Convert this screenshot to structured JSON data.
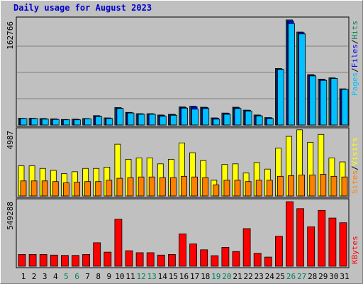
{
  "title": "Daily usage for August 2023",
  "colors": {
    "hits": "#00805c",
    "files": "#0000ff",
    "pages": "#00c0ff",
    "visits": "#ffff00",
    "sites": "#ff8000",
    "kbytes": "#ff0000",
    "weekend": "#008060",
    "day": "#000000"
  },
  "chart_data": [
    {
      "type": "bar",
      "panel": "top",
      "max_label": "162766",
      "ylim": [
        0,
        162766
      ],
      "legend": [
        "Pages",
        "Files",
        "Hits"
      ],
      "grid": true,
      "categories": [
        "1",
        "2",
        "3",
        "4",
        "5",
        "6",
        "7",
        "8",
        "9",
        "10",
        "11",
        "12",
        "13",
        "14",
        "15",
        "16",
        "17",
        "18",
        "19",
        "20",
        "21",
        "22",
        "23",
        "24",
        "25",
        "26",
        "27",
        "28",
        "29",
        "30",
        "31"
      ],
      "series": [
        {
          "name": "Hits",
          "values": [
            10500,
            10500,
            10000,
            9500,
            8500,
            9000,
            10000,
            14500,
            11000,
            27000,
            19500,
            17500,
            17500,
            15500,
            16500,
            28000,
            29000,
            27500,
            11000,
            18500,
            27500,
            23000,
            15500,
            11500,
            87500,
            162766,
            144000,
            78000,
            71000,
            73000,
            56000
          ]
        },
        {
          "name": "Files",
          "values": [
            10000,
            10000,
            9500,
            9000,
            8000,
            8500,
            9500,
            13500,
            10500,
            26000,
            19000,
            17000,
            17000,
            14500,
            16000,
            27000,
            28000,
            27000,
            10500,
            18000,
            26500,
            22500,
            14500,
            11000,
            86500,
            161000,
            143000,
            77000,
            70000,
            72000,
            55000
          ]
        },
        {
          "name": "Pages",
          "values": [
            10000,
            10000,
            9000,
            8500,
            8000,
            8000,
            9500,
            13000,
            10000,
            25500,
            18500,
            16500,
            16500,
            13500,
            15000,
            26000,
            24500,
            25500,
            9000,
            16500,
            25500,
            21500,
            14000,
            10000,
            86000,
            157000,
            141000,
            76000,
            69000,
            72000,
            55000
          ]
        }
      ]
    },
    {
      "type": "bar",
      "panel": "middle",
      "max_label": "4987",
      "ylim": [
        0,
        4987
      ],
      "legend": [
        "Sites",
        "Visits"
      ],
      "grid": false,
      "categories": [
        "1",
        "2",
        "3",
        "4",
        "5",
        "6",
        "7",
        "8",
        "9",
        "10",
        "11",
        "12",
        "13",
        "14",
        "15",
        "16",
        "17",
        "18",
        "19",
        "20",
        "21",
        "22",
        "23",
        "24",
        "25",
        "26",
        "27",
        "28",
        "29",
        "30",
        "31"
      ],
      "series": [
        {
          "name": "Visits",
          "values": [
            2300,
            2300,
            2100,
            1950,
            1700,
            1850,
            2100,
            2100,
            2200,
            3950,
            2800,
            2900,
            2900,
            2450,
            2800,
            4050,
            3300,
            2700,
            1200,
            2400,
            2450,
            1750,
            2550,
            2050,
            3650,
            4550,
            5050,
            4100,
            4700,
            2900,
            2600
          ]
        },
        {
          "name": "Sites",
          "values": [
            1150,
            1150,
            1150,
            1100,
            1000,
            1050,
            1100,
            1100,
            1200,
            1350,
            1400,
            1450,
            1450,
            1400,
            1400,
            1500,
            1450,
            1400,
            850,
            1200,
            1200,
            1100,
            1200,
            1200,
            1500,
            1550,
            1600,
            1600,
            1650,
            1500,
            1450
          ]
        }
      ]
    },
    {
      "type": "bar",
      "panel": "bottom",
      "max_label": "549288",
      "ylim": [
        0,
        549288
      ],
      "legend": [
        "KBytes"
      ],
      "grid": false,
      "categories": [
        "1",
        "2",
        "3",
        "4",
        "5",
        "6",
        "7",
        "8",
        "9",
        "10",
        "11",
        "12",
        "13",
        "14",
        "15",
        "16",
        "17",
        "18",
        "19",
        "20",
        "21",
        "22",
        "23",
        "24",
        "25",
        "26",
        "27",
        "28",
        "29",
        "30",
        "31"
      ],
      "series": [
        {
          "name": "KBytes",
          "values": [
            100000,
            100000,
            100000,
            95000,
            92000,
            92000,
            100000,
            200000,
            120000,
            400000,
            132000,
            115000,
            115000,
            95000,
            100000,
            275000,
            190000,
            140000,
            90000,
            160000,
            125000,
            320000,
            110000,
            78000,
            255000,
            549000,
            490000,
            335000,
            475000,
            410000,
            370000
          ]
        }
      ]
    }
  ],
  "weekend_days": [
    5,
    6,
    12,
    13,
    19,
    20,
    26,
    27
  ]
}
